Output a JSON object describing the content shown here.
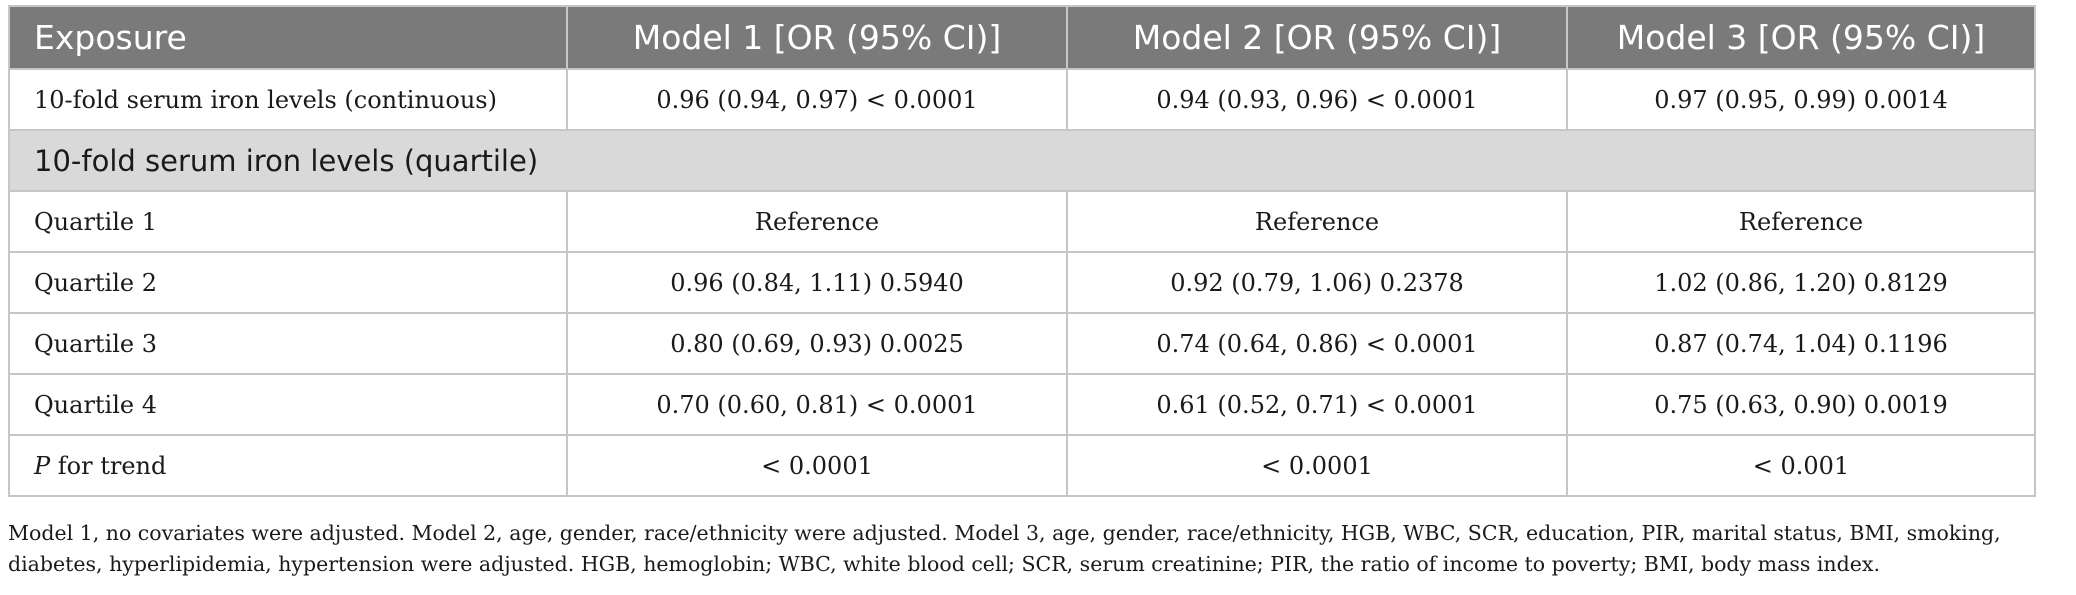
{
  "table": {
    "headers": [
      "Exposure",
      "Model 1 [OR (95% CI)]",
      "Model 2 [OR (95% CI)]",
      "Model 3 [OR (95% CI)]"
    ],
    "continuous_row": {
      "label": "10-fold serum iron levels (continuous)",
      "cells": [
        "0.96 (0.94, 0.97) < 0.0001",
        "0.94 (0.93, 0.96) < 0.0001",
        "0.97 (0.95, 0.99) 0.0014"
      ]
    },
    "section_label": "10-fold serum iron levels (quartile)",
    "rows": [
      {
        "label": "Quartile 1",
        "cells": [
          "Reference",
          "Reference",
          "Reference"
        ]
      },
      {
        "label": "Quartile 2",
        "cells": [
          "0.96 (0.84, 1.11) 0.5940",
          "0.92 (0.79, 1.06) 0.2378",
          "1.02 (0.86, 1.20) 0.8129"
        ]
      },
      {
        "label": "Quartile 3",
        "cells": [
          "0.80 (0.69, 0.93) 0.0025",
          "0.74 (0.64, 0.86) < 0.0001",
          "0.87 (0.74, 1.04) 0.1196"
        ]
      },
      {
        "label": "Quartile 4",
        "cells": [
          "0.70 (0.60, 0.81) < 0.0001",
          "0.61 (0.52, 0.71) < 0.0001",
          "0.75 (0.63, 0.90) 0.0019"
        ]
      }
    ],
    "trend_row": {
      "label_italic": "P",
      "label_rest": " for trend",
      "cells": [
        "< 0.0001",
        "< 0.0001",
        "< 0.001"
      ]
    }
  },
  "footnote": {
    "line1": "Model 1, no covariates were adjusted. Model 2, age, gender, race/ethnicity were adjusted. Model 3, age, gender, race/ethnicity, HGB, WBC, SCR, education, PIR, marital status, BMI, smoking,",
    "line2": "diabetes, hyperlipidemia, hypertension were adjusted. HGB, hemoglobin; WBC, white blood cell; SCR, serum creatinine; PIR, the ratio of income to poverty; BMI, body mass index."
  }
}
